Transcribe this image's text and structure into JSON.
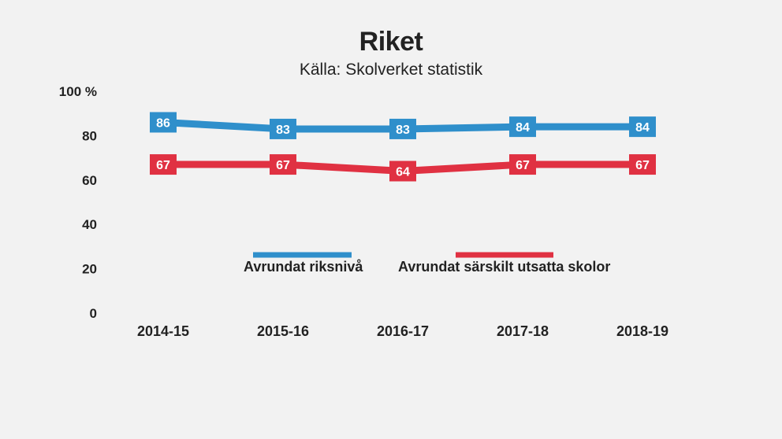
{
  "chart_data": {
    "type": "line",
    "title": "Riket",
    "subtitle": "Källa: Skolverket statistik",
    "categories": [
      "2014-15",
      "2015-16",
      "2016-17",
      "2017-18",
      "2018-19"
    ],
    "y_ticks": [
      "0",
      "20",
      "40",
      "60",
      "80",
      "100 %"
    ],
    "ylim": [
      0,
      100
    ],
    "grid": false,
    "legend_position": "center",
    "series": [
      {
        "name": "Avrundat riksnivå",
        "color": "#2f8fcb",
        "values": [
          86,
          83,
          83,
          84,
          84
        ]
      },
      {
        "name": "Avrundat särskilt utsatta skolor",
        "color": "#e03142",
        "values": [
          67,
          67,
          64,
          67,
          67
        ]
      }
    ]
  }
}
